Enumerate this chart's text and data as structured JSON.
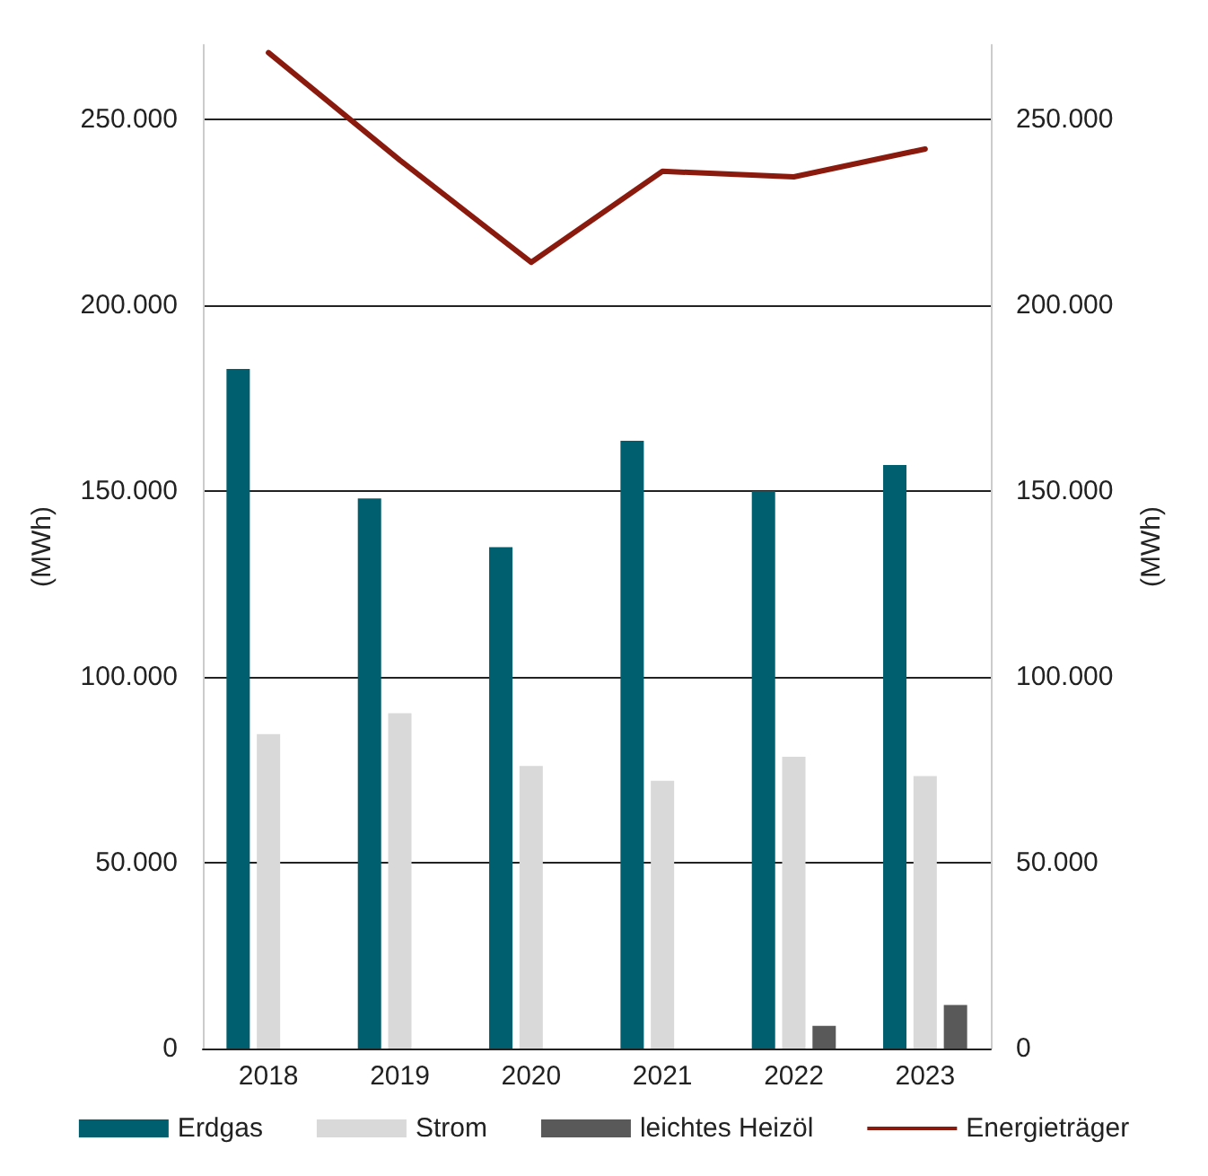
{
  "chart_data": {
    "type": "bar",
    "categories": [
      "2018",
      "2019",
      "2020",
      "2021",
      "2022",
      "2023"
    ],
    "series": [
      {
        "name": "Erdgas",
        "color": "#005f6e",
        "values": [
          182800,
          148000,
          134900,
          163500,
          150000,
          157000
        ]
      },
      {
        "name": "Strom",
        "color": "#d9d9d9",
        "values": [
          84600,
          90200,
          76000,
          72000,
          78500,
          73300
        ]
      },
      {
        "name": "leichtes Heizöl",
        "color": "#595959",
        "values": [
          null,
          null,
          null,
          null,
          6100,
          11700
        ]
      },
      {
        "name": "Energieträger",
        "type": "line",
        "color": "#8b1a0e",
        "values": [
          267900,
          239000,
          211500,
          236000,
          234500,
          242000
        ]
      }
    ],
    "ylabel": "(MWh)",
    "y2label": "(MWh)",
    "ylim": [
      0,
      270000
    ],
    "yticks": [
      {
        "value": 0,
        "label": "0"
      },
      {
        "value": 50000,
        "label": "50.000"
      },
      {
        "value": 100000,
        "label": "100.000"
      },
      {
        "value": 150000,
        "label": "150.000"
      },
      {
        "value": 200000,
        "label": "200.000"
      },
      {
        "value": 250000,
        "label": "250.000"
      }
    ],
    "y2lim": [
      0,
      270000
    ],
    "y2ticks": [
      {
        "value": 0,
        "label": "0"
      },
      {
        "value": 50000,
        "label": "50.000"
      },
      {
        "value": 100000,
        "label": "100.000"
      },
      {
        "value": 150000,
        "label": "150.000"
      },
      {
        "value": 200000,
        "label": "200.000"
      },
      {
        "value": 250000,
        "label": "250.000"
      }
    ],
    "grid": "y",
    "legend": "bottom",
    "marker": "none",
    "line_style": "solid"
  }
}
